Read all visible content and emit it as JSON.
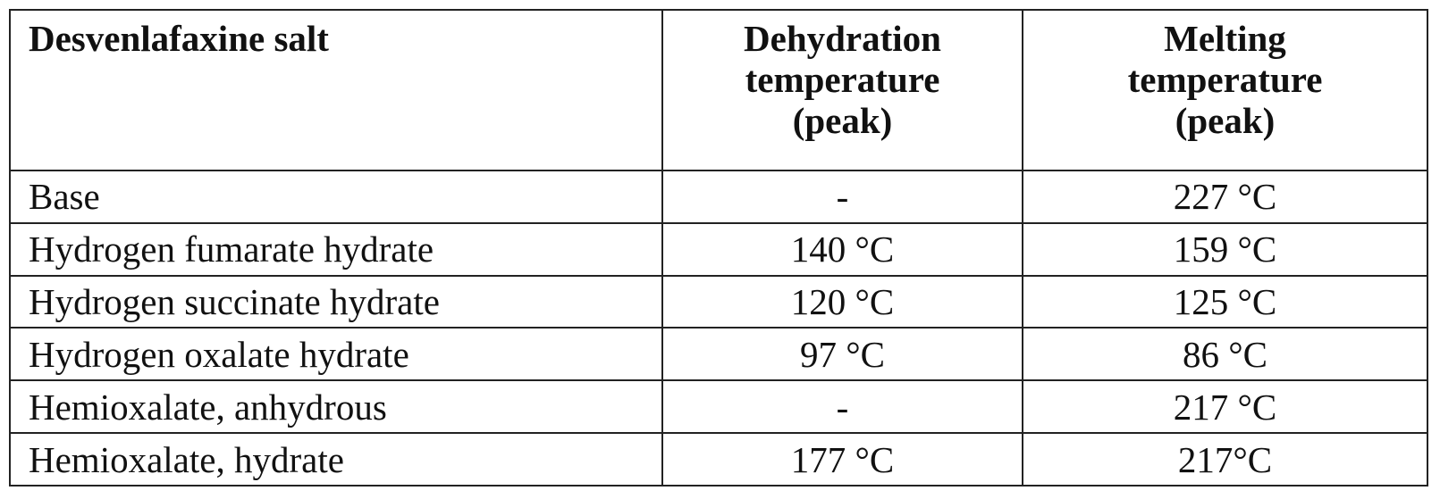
{
  "table": {
    "headers": {
      "salt": "Desvenlafaxine salt",
      "dehydration": [
        "Dehydration",
        "temperature",
        "(peak)"
      ],
      "melting": [
        "Melting",
        "temperature",
        "(peak)"
      ]
    },
    "rows": [
      {
        "salt": "Base",
        "dehydration": "-",
        "melting": "227 °C"
      },
      {
        "salt": "Hydrogen fumarate hydrate",
        "dehydration": "140 °C",
        "melting": "159 °C"
      },
      {
        "salt": "Hydrogen succinate hydrate",
        "dehydration": "120 °C",
        "melting": "125 °C"
      },
      {
        "salt": "Hydrogen oxalate hydrate",
        "dehydration": "97 °C",
        "melting": "86 °C"
      },
      {
        "salt": "Hemioxalate, anhydrous",
        "dehydration": "-",
        "melting": "217 °C"
      },
      {
        "salt": "Hemioxalate, hydrate",
        "dehydration": "177 °C",
        "melting": "217°C"
      }
    ]
  }
}
